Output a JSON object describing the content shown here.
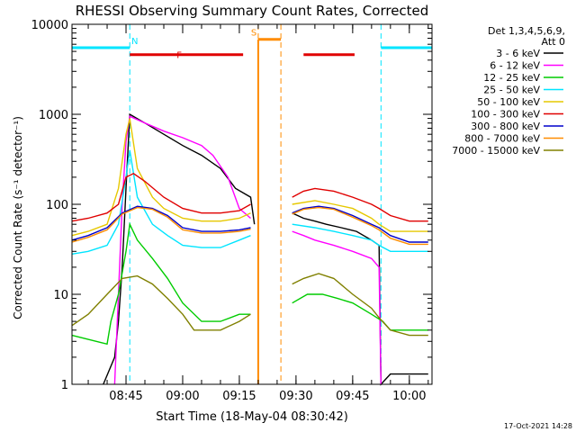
{
  "chart_data": {
    "type": "line",
    "title": "RHESSI Observing Summary Count Rates, Corrected",
    "xlabel": "Start Time (18-May-04 08:30:42)",
    "ylabel": "Corrected Count Rate (s⁻¹ detector⁻¹)",
    "y_scale": "log",
    "ylim": [
      1,
      10000
    ],
    "xlim": [
      "08:30:42",
      "10:06:00"
    ],
    "x_ticks": [
      "08:45",
      "09:00",
      "09:15",
      "09:30",
      "09:45",
      "10:00"
    ],
    "y_ticks": [
      "1",
      "10",
      "100",
      "1000",
      "10000"
    ],
    "legend_header": [
      "Det 1,3,4,5,6,9,",
      "Att 0"
    ],
    "legend_position": "right",
    "timestamp": "17-Oct-2021 14:28",
    "flags": [
      {
        "label": "N",
        "color": "#00e5ff",
        "segments": [
          [
            "08:30:42",
            "08:46:00"
          ],
          [
            "09:52:30",
            "10:06:00"
          ]
        ],
        "level": 5500
      },
      {
        "label": "F",
        "color": "#e00000",
        "segments": [
          [
            "08:46:00",
            "09:16:00"
          ],
          [
            "09:32:00",
            "09:45:30"
          ]
        ],
        "level": 4600
      },
      {
        "label": "S",
        "color": "#ff8c00",
        "segments": [
          [
            "09:20:00",
            "09:26:00"
          ]
        ],
        "level": 6800
      }
    ],
    "markers": [
      {
        "color": "#00e5ff",
        "times": [
          "08:30:42",
          "08:46:00",
          "09:52:30",
          "10:06:00"
        ]
      },
      {
        "color": "#ff8c00",
        "times": [
          "09:20:00",
          "09:26:00"
        ]
      }
    ],
    "gap": [
      "09:20:00",
      "09:29:00"
    ],
    "series": [
      {
        "name": "3 - 6 keV",
        "color": "#000000",
        "x": [
          "08:39",
          "08:42",
          "08:43",
          "08:44",
          "08:45",
          "08:46",
          "08:50",
          "08:55",
          "09:00",
          "09:05",
          "09:10",
          "09:14",
          "09:18",
          "09:19",
          "09:29",
          "09:32",
          "09:35",
          "09:38",
          "09:42",
          "09:46",
          "09:50",
          "09:52",
          "09:52.5",
          "09:55",
          "10:00",
          "10:05"
        ],
        "y": [
          1,
          2,
          5,
          20,
          150,
          1000,
          800,
          600,
          450,
          350,
          250,
          150,
          120,
          60,
          80,
          70,
          65,
          60,
          55,
          50,
          40,
          35,
          1,
          1.3,
          1.3,
          1.3
        ]
      },
      {
        "name": "6 - 12 keV",
        "color": "#ff00ff",
        "x": [
          "08:42",
          "08:43",
          "08:44",
          "08:45",
          "08:46",
          "08:50",
          "08:55",
          "09:00",
          "09:05",
          "09:08",
          "09:12",
          "09:15",
          "09:18",
          "09:29",
          "09:32",
          "09:35",
          "09:40",
          "09:45",
          "09:50",
          "09:52",
          "09:52.5"
        ],
        "y": [
          1,
          10,
          100,
          500,
          950,
          800,
          650,
          550,
          450,
          350,
          200,
          90,
          70,
          50,
          45,
          40,
          35,
          30,
          25,
          20,
          1
        ]
      },
      {
        "name": "12 - 25 keV",
        "color": "#00cc00",
        "x": [
          "08:30:42",
          "08:40",
          "08:41",
          "08:43",
          "08:45",
          "08:46",
          "08:48",
          "08:52",
          "08:56",
          "09:00",
          "09:05",
          "09:10",
          "09:15",
          "09:18",
          "09:29",
          "09:33",
          "09:37",
          "09:41",
          "09:45",
          "09:50",
          "09:53",
          "09:55",
          "10:00",
          "10:05"
        ],
        "y": [
          3.5,
          2.8,
          5,
          10,
          30,
          60,
          40,
          25,
          15,
          8,
          5,
          5,
          6,
          6,
          8,
          10,
          10,
          9,
          8,
          6,
          5,
          4,
          4,
          4
        ]
      },
      {
        "name": "25 - 50 keV",
        "color": "#00e5ff",
        "x": [
          "08:30:42",
          "08:35",
          "08:40",
          "08:43",
          "08:45",
          "08:46",
          "08:48",
          "08:52",
          "08:56",
          "09:00",
          "09:05",
          "09:10",
          "09:15",
          "09:18",
          "09:29",
          "09:35",
          "09:40",
          "09:45",
          "09:50",
          "09:52",
          "09:55",
          "10:00",
          "10:05"
        ],
        "y": [
          28,
          30,
          35,
          60,
          200,
          400,
          120,
          60,
          45,
          35,
          33,
          33,
          40,
          45,
          60,
          55,
          50,
          45,
          40,
          35,
          30,
          30,
          30
        ]
      },
      {
        "name": "50 - 100 keV",
        "color": "#e6c800",
        "x": [
          "08:30:42",
          "08:35",
          "08:40",
          "08:43",
          "08:45",
          "08:46",
          "08:48",
          "08:52",
          "08:55",
          "09:00",
          "09:05",
          "09:10",
          "09:15",
          "09:18",
          "09:29",
          "09:35",
          "09:40",
          "09:45",
          "09:50",
          "09:52",
          "09:55",
          "10:00",
          "10:05"
        ],
        "y": [
          45,
          50,
          60,
          150,
          600,
          900,
          250,
          120,
          90,
          70,
          65,
          65,
          70,
          80,
          100,
          110,
          100,
          90,
          70,
          60,
          50,
          50,
          50
        ]
      },
      {
        "name": "100 - 300 keV",
        "color": "#e00000",
        "x": [
          "08:30:42",
          "08:35",
          "08:40",
          "08:43",
          "08:45",
          "08:47",
          "08:50",
          "08:55",
          "09:00",
          "09:05",
          "09:10",
          "09:15",
          "09:18",
          "09:29",
          "09:32",
          "09:35",
          "09:40",
          "09:45",
          "09:50",
          "09:52",
          "09:55",
          "10:00",
          "10:05"
        ],
        "y": [
          65,
          70,
          80,
          100,
          200,
          220,
          180,
          120,
          90,
          80,
          80,
          85,
          100,
          120,
          140,
          150,
          140,
          120,
          100,
          90,
          75,
          65,
          65
        ]
      },
      {
        "name": "300 - 800 keV",
        "color": "#0000cc",
        "x": [
          "08:30:42",
          "08:35",
          "08:40",
          "08:44",
          "08:48",
          "08:52",
          "08:56",
          "09:00",
          "09:05",
          "09:10",
          "09:15",
          "09:18",
          "09:29",
          "09:32",
          "09:36",
          "09:40",
          "09:45",
          "09:50",
          "09:52",
          "09:55",
          "10:00",
          "10:05"
        ],
        "y": [
          40,
          45,
          55,
          80,
          95,
          90,
          75,
          55,
          50,
          50,
          52,
          55,
          80,
          90,
          95,
          90,
          75,
          60,
          55,
          45,
          38,
          38
        ]
      },
      {
        "name": "800 - 7000 keV",
        "color": "#ff8c00",
        "x": [
          "08:30:42",
          "08:35",
          "08:40",
          "08:44",
          "08:48",
          "08:52",
          "08:56",
          "09:00",
          "09:05",
          "09:10",
          "09:15",
          "09:18",
          "09:29",
          "09:32",
          "09:36",
          "09:40",
          "09:45",
          "09:50",
          "09:52",
          "09:55",
          "10:00",
          "10:05"
        ],
        "y": [
          38,
          43,
          52,
          78,
          92,
          88,
          72,
          52,
          48,
          48,
          50,
          53,
          78,
          88,
          92,
          88,
          72,
          58,
          52,
          42,
          36,
          36
        ]
      },
      {
        "name": "7000 - 15000 keV",
        "color": "#808000",
        "x": [
          "08:30:42",
          "08:35",
          "08:40",
          "08:44",
          "08:48",
          "08:52",
          "08:56",
          "09:00",
          "09:03",
          "09:06",
          "09:10",
          "09:15",
          "09:18",
          "09:29",
          "09:32",
          "09:36",
          "09:40",
          "09:45",
          "09:50",
          "09:52",
          "09:55",
          "10:00",
          "10:05"
        ],
        "y": [
          4.5,
          6,
          10,
          15,
          16,
          13,
          9,
          6,
          4,
          4,
          4,
          5,
          6,
          13,
          15,
          17,
          15,
          10,
          7,
          5.5,
          4,
          3.5,
          3.5
        ]
      }
    ]
  }
}
